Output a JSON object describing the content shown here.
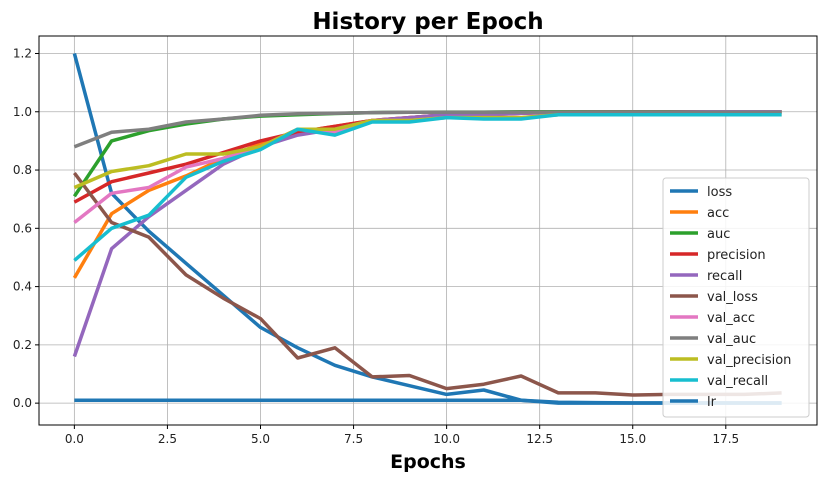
{
  "chart_data": {
    "type": "line",
    "title": "History per Epoch",
    "xlabel": "Epochs",
    "ylabel": "",
    "xlim": [
      -0.95,
      19.95
    ],
    "ylim": [
      -0.075,
      1.26
    ],
    "xticks": [
      0.0,
      2.5,
      5.0,
      7.5,
      10.0,
      12.5,
      15.0,
      17.5
    ],
    "xtick_labels": [
      "0.0",
      "2.5",
      "5.0",
      "7.5",
      "10.0",
      "12.5",
      "15.0",
      "17.5"
    ],
    "yticks": [
      0.0,
      0.2,
      0.4,
      0.6,
      0.8,
      1.0,
      1.2
    ],
    "ytick_labels": [
      "0.0",
      "0.2",
      "0.4",
      "0.6",
      "0.8",
      "1.0",
      "1.2"
    ],
    "grid": true,
    "legend_position": "center-right",
    "x": [
      0,
      1,
      2,
      3,
      4,
      5,
      6,
      7,
      8,
      9,
      10,
      11,
      12,
      13,
      14,
      15,
      16,
      17,
      18,
      19
    ],
    "series": [
      {
        "name": "loss",
        "color": "#1f77b4",
        "values": [
          1.2,
          0.72,
          0.59,
          0.48,
          0.37,
          0.26,
          0.19,
          0.13,
          0.09,
          0.06,
          0.03,
          0.045,
          0.01,
          0.003,
          0.002,
          0.001,
          0.001,
          0.001,
          0.001,
          0.001
        ]
      },
      {
        "name": "acc",
        "color": "#ff7f0e",
        "values": [
          0.43,
          0.65,
          0.73,
          0.78,
          0.84,
          0.89,
          0.93,
          0.95,
          0.97,
          0.98,
          0.99,
          0.99,
          0.995,
          0.998,
          0.999,
          0.999,
          0.999,
          1.0,
          1.0,
          1.0
        ]
      },
      {
        "name": "auc",
        "color": "#2ca02c",
        "values": [
          0.71,
          0.9,
          0.935,
          0.958,
          0.975,
          0.985,
          0.99,
          0.994,
          0.997,
          0.998,
          0.999,
          0.999,
          1.0,
          1.0,
          1.0,
          1.0,
          1.0,
          1.0,
          1.0,
          1.0
        ]
      },
      {
        "name": "precision",
        "color": "#d62728",
        "values": [
          0.69,
          0.76,
          0.79,
          0.82,
          0.86,
          0.9,
          0.93,
          0.95,
          0.97,
          0.98,
          0.99,
          0.99,
          0.995,
          0.998,
          0.999,
          0.999,
          0.999,
          1.0,
          1.0,
          1.0
        ]
      },
      {
        "name": "recall",
        "color": "#9467bd",
        "values": [
          0.16,
          0.53,
          0.64,
          0.73,
          0.82,
          0.88,
          0.92,
          0.94,
          0.97,
          0.98,
          0.99,
          0.99,
          0.995,
          0.998,
          0.999,
          0.999,
          0.999,
          1.0,
          1.0,
          1.0
        ]
      },
      {
        "name": "val_loss",
        "color": "#8c564b",
        "values": [
          0.79,
          0.62,
          0.57,
          0.44,
          0.36,
          0.29,
          0.155,
          0.19,
          0.09,
          0.095,
          0.05,
          0.065,
          0.093,
          0.035,
          0.035,
          0.028,
          0.03,
          0.03,
          0.03,
          0.035
        ]
      },
      {
        "name": "val_acc",
        "color": "#e377c2",
        "values": [
          0.62,
          0.72,
          0.74,
          0.81,
          0.84,
          0.88,
          0.94,
          0.93,
          0.97,
          0.97,
          0.98,
          0.98,
          0.98,
          0.99,
          0.99,
          0.99,
          0.99,
          0.99,
          0.99,
          0.99
        ]
      },
      {
        "name": "val_auc",
        "color": "#7f7f7f",
        "values": [
          0.88,
          0.93,
          0.94,
          0.965,
          0.975,
          0.988,
          0.993,
          0.995,
          0.997,
          0.998,
          0.998,
          0.998,
          0.999,
          0.999,
          0.999,
          0.999,
          0.999,
          0.999,
          0.999,
          0.999
        ]
      },
      {
        "name": "val_precision",
        "color": "#bcbd22",
        "values": [
          0.74,
          0.795,
          0.815,
          0.855,
          0.855,
          0.88,
          0.94,
          0.94,
          0.97,
          0.97,
          0.98,
          0.98,
          0.98,
          0.99,
          0.99,
          0.99,
          0.99,
          0.99,
          0.99,
          0.99
        ]
      },
      {
        "name": "val_recall",
        "color": "#17becf",
        "values": [
          0.49,
          0.6,
          0.645,
          0.775,
          0.83,
          0.87,
          0.94,
          0.92,
          0.965,
          0.965,
          0.98,
          0.975,
          0.975,
          0.99,
          0.99,
          0.99,
          0.99,
          0.99,
          0.99,
          0.99
        ]
      },
      {
        "name": "lr",
        "color": "#1f77b4",
        "values": [
          0.01,
          0.01,
          0.01,
          0.01,
          0.01,
          0.01,
          0.01,
          0.01,
          0.01,
          0.01,
          0.01,
          0.01,
          0.01,
          0.0,
          0.0,
          0.0,
          0.0,
          0.0,
          0.0,
          0.0
        ]
      }
    ]
  }
}
